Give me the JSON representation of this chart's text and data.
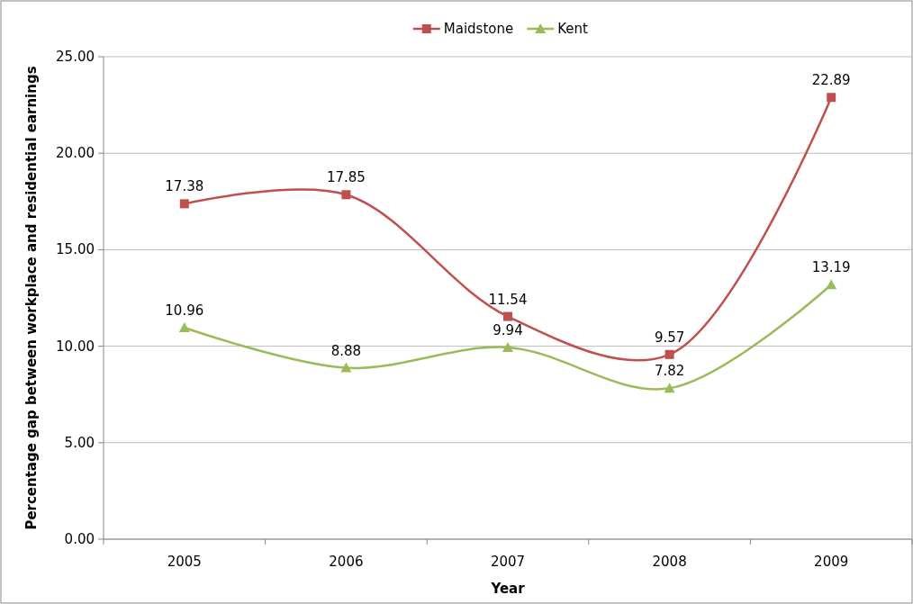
{
  "chart_data": {
    "type": "line",
    "xlabel": "Year",
    "ylabel": "Percentage gap between workplace and residential earnings",
    "categories": [
      "2005",
      "2006",
      "2007",
      "2008",
      "2009"
    ],
    "series": [
      {
        "name": "Maidstone",
        "color": "#c0504d",
        "marker": "square",
        "values": [
          17.38,
          17.85,
          11.54,
          9.57,
          22.89
        ]
      },
      {
        "name": "Kent",
        "color": "#9bbb59",
        "marker": "triangle",
        "values": [
          10.96,
          8.88,
          9.94,
          7.82,
          13.19
        ]
      }
    ],
    "ylim": [
      0,
      25
    ],
    "yticks": [
      {
        "value": 0,
        "label": "0.00"
      },
      {
        "value": 5,
        "label": "5.00"
      },
      {
        "value": 10,
        "label": "10.00"
      },
      {
        "value": 15,
        "label": "15.00"
      },
      {
        "value": 20,
        "label": "20.00"
      },
      {
        "value": 25,
        "label": "25.00"
      }
    ],
    "grid": "y",
    "legend": "top",
    "data_labels": true
  }
}
